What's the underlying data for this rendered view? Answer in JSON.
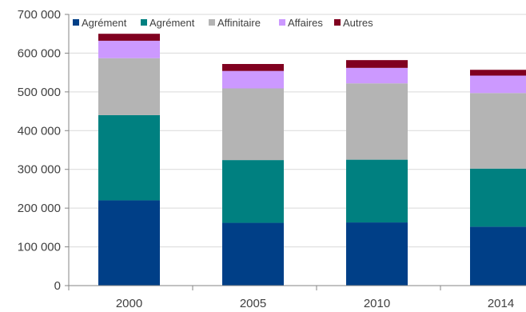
{
  "chart_data": {
    "type": "bar",
    "stacked": true,
    "categories": [
      "2000",
      "2005",
      "2010",
      "2014"
    ],
    "series": [
      {
        "name": "Agrément",
        "color": "#003f87",
        "values": [
          220000,
          162000,
          163000,
          152000
        ]
      },
      {
        "name": "Agrément",
        "color": "#008080",
        "values": [
          220000,
          162000,
          162000,
          150000
        ]
      },
      {
        "name": "Affinitaire",
        "color": "#b4b4b4",
        "values": [
          147000,
          185000,
          197000,
          195000
        ]
      },
      {
        "name": "Affaires",
        "color": "#cc99ff",
        "values": [
          45000,
          45000,
          40000,
          45000
        ]
      },
      {
        "name": "Autres",
        "color": "#800020",
        "values": [
          18000,
          18000,
          20000,
          15000
        ]
      }
    ],
    "yticks": [
      "0",
      "100 000",
      "200 000",
      "300 000",
      "400 000",
      "500 000",
      "600 000",
      "700 000"
    ],
    "ylim": [
      0,
      700000
    ],
    "grid": true,
    "legend_position": "top-left"
  }
}
